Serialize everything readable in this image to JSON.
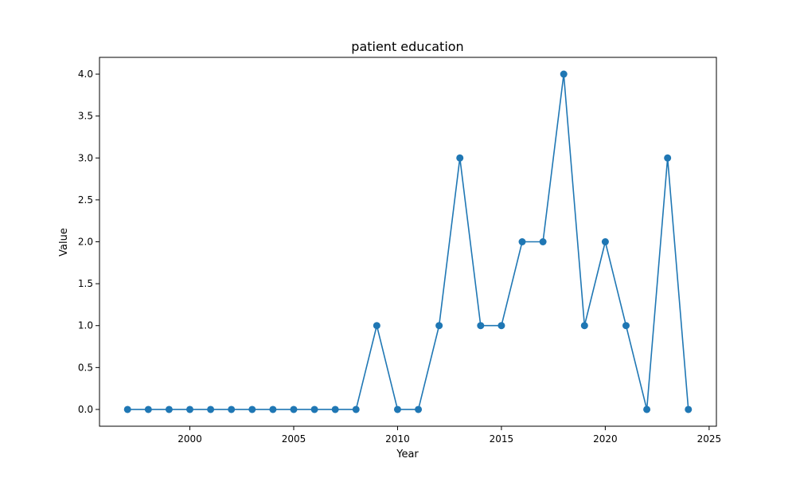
{
  "chart_data": {
    "type": "line",
    "title": "patient education",
    "xlabel": "Year",
    "ylabel": "Value",
    "x": [
      1997,
      1998,
      1999,
      2000,
      2001,
      2002,
      2003,
      2004,
      2005,
      2006,
      2007,
      2008,
      2009,
      2010,
      2011,
      2012,
      2013,
      2014,
      2015,
      2016,
      2017,
      2018,
      2019,
      2020,
      2021,
      2022,
      2023,
      2024
    ],
    "series": [
      {
        "values": [
          0,
          0,
          0,
          0,
          0,
          0,
          0,
          0,
          0,
          0,
          0,
          0,
          1,
          0,
          0,
          1,
          3,
          1,
          1,
          2,
          2,
          4,
          1,
          2,
          1,
          0,
          3,
          0
        ],
        "color": "#1f77b4",
        "marker": "circle"
      }
    ],
    "xticks": [
      "2000",
      "2005",
      "2010",
      "2015",
      "2020",
      "2025"
    ],
    "yticks": [
      "0.0",
      "0.5",
      "1.0",
      "1.5",
      "2.0",
      "2.5",
      "3.0",
      "3.5",
      "4.0"
    ],
    "xlim": [
      1995.65,
      2025.35
    ],
    "ylim": [
      -0.2,
      4.2
    ],
    "grid": false,
    "legend": false
  }
}
